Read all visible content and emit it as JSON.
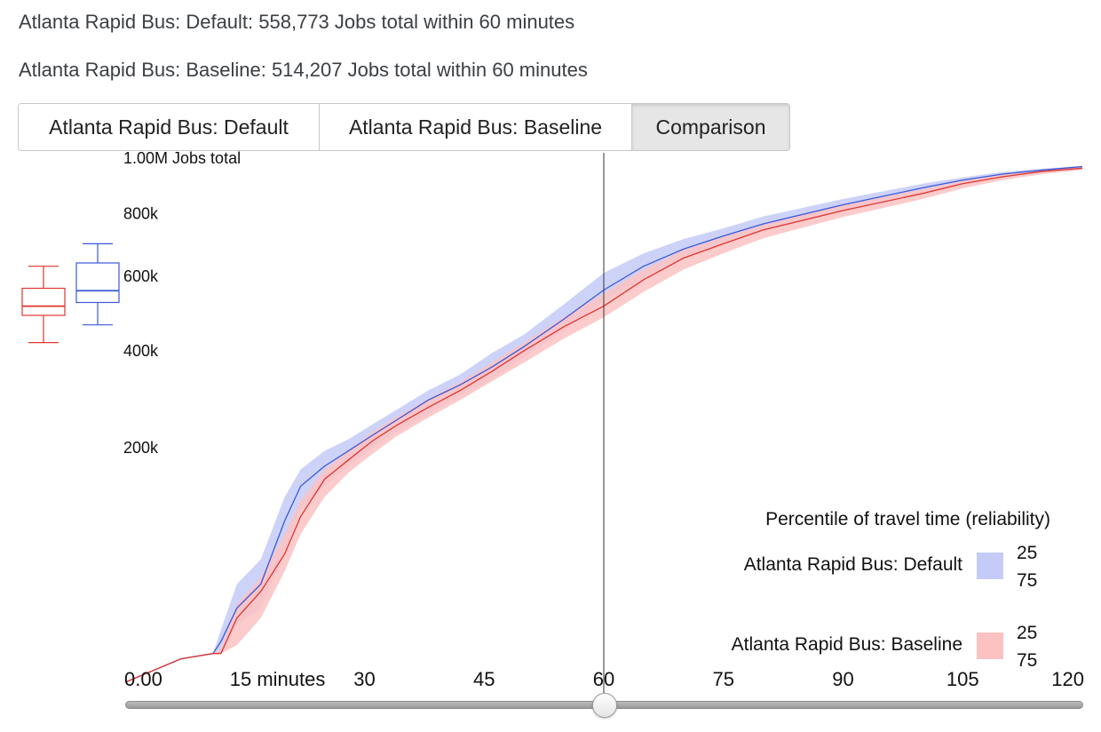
{
  "summary": {
    "default_text": "Atlanta Rapid Bus: Default: 558,773 Jobs total within 60 minutes",
    "baseline_text": "Atlanta Rapid Bus: Baseline: 514,207 Jobs total within 60 minutes"
  },
  "tabs": [
    {
      "label": "Atlanta Rapid Bus: Default",
      "active": false
    },
    {
      "label": "Atlanta Rapid Bus: Baseline",
      "active": false
    },
    {
      "label": "Comparison",
      "active": true
    }
  ],
  "colors": {
    "default_line": "#3b57d9",
    "default_band": "#c4cbf7",
    "baseline_line": "#e0342f",
    "baseline_band": "#fcc2c2"
  },
  "slider": {
    "value": 60,
    "min": 0,
    "max": 120
  },
  "chart_data": {
    "type": "area",
    "x_unit": "minutes",
    "xlim": [
      0,
      120
    ],
    "x_ticks": [
      {
        "value": 0,
        "label": "0.00"
      },
      {
        "value": 15,
        "label": "15 minutes"
      },
      {
        "value": 30,
        "label": "30"
      },
      {
        "value": 45,
        "label": "45"
      },
      {
        "value": 60,
        "label": "60"
      },
      {
        "value": 75,
        "label": "75"
      },
      {
        "value": 90,
        "label": "90"
      },
      {
        "value": 105,
        "label": "105"
      },
      {
        "value": 120,
        "label": "120"
      }
    ],
    "y_scale": "sqrt",
    "ylim": [
      0,
      1000000
    ],
    "y_ticks": [
      {
        "value": 200000,
        "label": "200k"
      },
      {
        "value": 400000,
        "label": "400k"
      },
      {
        "value": 600000,
        "label": "600k"
      },
      {
        "value": 800000,
        "label": "800k"
      },
      {
        "value": 1000000,
        "label": "1.00M Jobs total"
      }
    ],
    "cutoff_minutes": 60,
    "series": [
      {
        "name": "Atlanta Rapid Bus: Default",
        "x": [
          0,
          7,
          11,
          12,
          14,
          17,
          20,
          22,
          25,
          28,
          31,
          34,
          38,
          42,
          46,
          50,
          55,
          60,
          65,
          70,
          75,
          80,
          90,
          100,
          105,
          110,
          115,
          120
        ],
        "median": [
          0,
          2000,
          3000,
          6000,
          20000,
          35000,
          95000,
          140000,
          170000,
          195000,
          222000,
          250000,
          290000,
          322000,
          362000,
          410000,
          480000,
          560000,
          630000,
          683000,
          725000,
          765000,
          830000,
          890000,
          918000,
          940000,
          955000,
          968000
        ],
        "p25": [
          0,
          2000,
          3000,
          10000,
          35000,
          55000,
          125000,
          165000,
          195000,
          215000,
          242000,
          270000,
          310000,
          345000,
          395000,
          440000,
          520000,
          610000,
          670000,
          715000,
          750000,
          790000,
          850000,
          905000,
          928000,
          948000,
          960000,
          970000
        ],
        "p75": [
          0,
          2000,
          3000,
          3000,
          12000,
          20000,
          60000,
          110000,
          140000,
          170000,
          200000,
          228000,
          262000,
          298000,
          335000,
          385000,
          450000,
          530000,
          595000,
          655000,
          700000,
          745000,
          812000,
          875000,
          905000,
          930000,
          948000,
          962000
        ]
      },
      {
        "name": "Atlanta Rapid Bus: Baseline",
        "x": [
          0,
          7,
          11,
          12,
          14,
          17,
          20,
          22,
          25,
          28,
          31,
          34,
          38,
          42,
          46,
          50,
          55,
          60,
          65,
          70,
          75,
          80,
          90,
          100,
          105,
          110,
          115,
          120
        ],
        "median": [
          0,
          2000,
          3000,
          3000,
          15000,
          30000,
          60000,
          100000,
          150000,
          180000,
          212000,
          240000,
          275000,
          310000,
          352000,
          400000,
          460000,
          515000,
          590000,
          655000,
          700000,
          745000,
          810000,
          870000,
          905000,
          930000,
          950000,
          962000
        ],
        "p25": [
          0,
          2000,
          3000,
          4000,
          22000,
          40000,
          80000,
          120000,
          165000,
          195000,
          228000,
          256000,
          292000,
          328000,
          372000,
          420000,
          485000,
          550000,
          620000,
          680000,
          722000,
          762000,
          830000,
          885000,
          915000,
          938000,
          955000,
          966000
        ],
        "p75": [
          0,
          2000,
          3000,
          3000,
          5000,
          15000,
          45000,
          80000,
          125000,
          160000,
          190000,
          220000,
          255000,
          290000,
          330000,
          372000,
          430000,
          485000,
          555000,
          620000,
          670000,
          718000,
          788000,
          850000,
          888000,
          918000,
          940000,
          955000
        ]
      }
    ],
    "box_plots": [
      {
        "series": "Atlanta Rapid Bus: Baseline",
        "min": 420000,
        "q1": 490000,
        "median": 515000,
        "q3": 565000,
        "max": 630000
      },
      {
        "series": "Atlanta Rapid Bus: Default",
        "min": 465000,
        "q1": 525000,
        "median": 558000,
        "q3": 640000,
        "max": 700000
      }
    ],
    "legend": {
      "title": "Percentile of travel time (reliability)",
      "position": "bottom-right",
      "entries": [
        {
          "label": "Atlanta Rapid Bus: Default",
          "upper": "25",
          "lower": "75"
        },
        {
          "label": "Atlanta Rapid Bus: Baseline",
          "upper": "25",
          "lower": "75"
        }
      ]
    }
  }
}
